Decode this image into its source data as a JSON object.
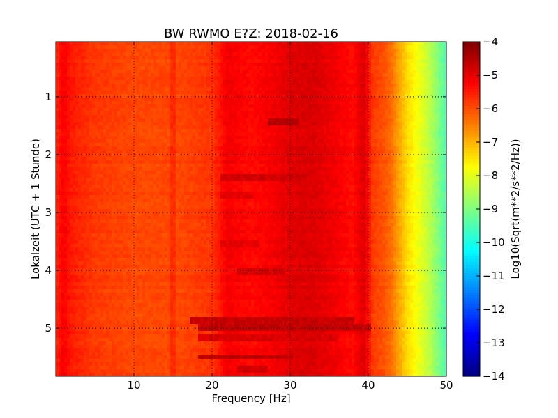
{
  "chart_data": {
    "type": "heatmap",
    "title": "BW RWMO E?Z: 2018-02-16",
    "xlabel": "Frequency [Hz]",
    "ylabel": "Lokalzeit (UTC + 1 Stunde)",
    "xlim": [
      0,
      50
    ],
    "ylim": [
      5.83,
      0.05
    ],
    "y_inverted": true,
    "x_ticks": [
      10,
      20,
      30,
      40,
      50
    ],
    "x_tick_labels": [
      "10",
      "20",
      "30",
      "40",
      "50"
    ],
    "y_ticks": [
      1,
      2,
      3,
      4,
      5
    ],
    "y_tick_labels": [
      "1",
      "2",
      "3",
      "4",
      "5"
    ],
    "grid": true,
    "colormap": "jet",
    "colorbar": {
      "label": "Log10(Sqrt(m**2/s**2/Hz))",
      "range": [
        -14,
        -4
      ],
      "ticks": [
        -4,
        -5,
        -6,
        -7,
        -8,
        -9,
        -10,
        -11,
        -12,
        -13,
        -14
      ],
      "tick_labels": [
        "−4",
        "−5",
        "−6",
        "−7",
        "−8",
        "−9",
        "−10",
        "−11",
        "−12",
        "−13",
        "−14"
      ]
    },
    "frequency_profile_hz": [
      0,
      1,
      2,
      5,
      10,
      14.5,
      15,
      15.5,
      20,
      22,
      25,
      28,
      30,
      33,
      36,
      38,
      39.5,
      40.5,
      42,
      43,
      44,
      45,
      46,
      47,
      48,
      49,
      50
    ],
    "frequency_profile_value": [
      -5.6,
      -5.2,
      -5.5,
      -5.8,
      -5.95,
      -5.95,
      -5.55,
      -5.95,
      -5.75,
      -5.15,
      -5.35,
      -5.15,
      -4.95,
      -4.9,
      -5.15,
      -5.35,
      -4.9,
      -5.8,
      -6.05,
      -6.35,
      -6.9,
      -7.4,
      -7.75,
      -8.1,
      -8.5,
      -9.0,
      -9.5
    ],
    "time_features": [
      {
        "t": 1.45,
        "f_from": 27,
        "f_to": 31,
        "value": -4.5
      },
      {
        "t": 2.4,
        "f_from": 21,
        "f_to": 32,
        "value": -4.8
      },
      {
        "t": 2.7,
        "f_from": 21,
        "f_to": 25,
        "value": -5.0
      },
      {
        "t": 3.55,
        "f_from": 21,
        "f_to": 26,
        "value": -5.0
      },
      {
        "t": 4.0,
        "f_from": 23,
        "f_to": 29,
        "value": -4.85
      },
      {
        "t": 4.85,
        "f_from": 17,
        "f_to": 38,
        "value": -4.7
      },
      {
        "t": 5.0,
        "f_from": 18,
        "f_to": 40,
        "value": -4.65
      },
      {
        "t": 5.15,
        "f_from": 18,
        "f_to": 36,
        "value": -4.9
      },
      {
        "t": 5.5,
        "f_from": 18,
        "f_to": 30,
        "value": -4.6
      },
      {
        "t": 5.7,
        "f_from": 23,
        "f_to": 27,
        "value": -4.8
      }
    ]
  }
}
